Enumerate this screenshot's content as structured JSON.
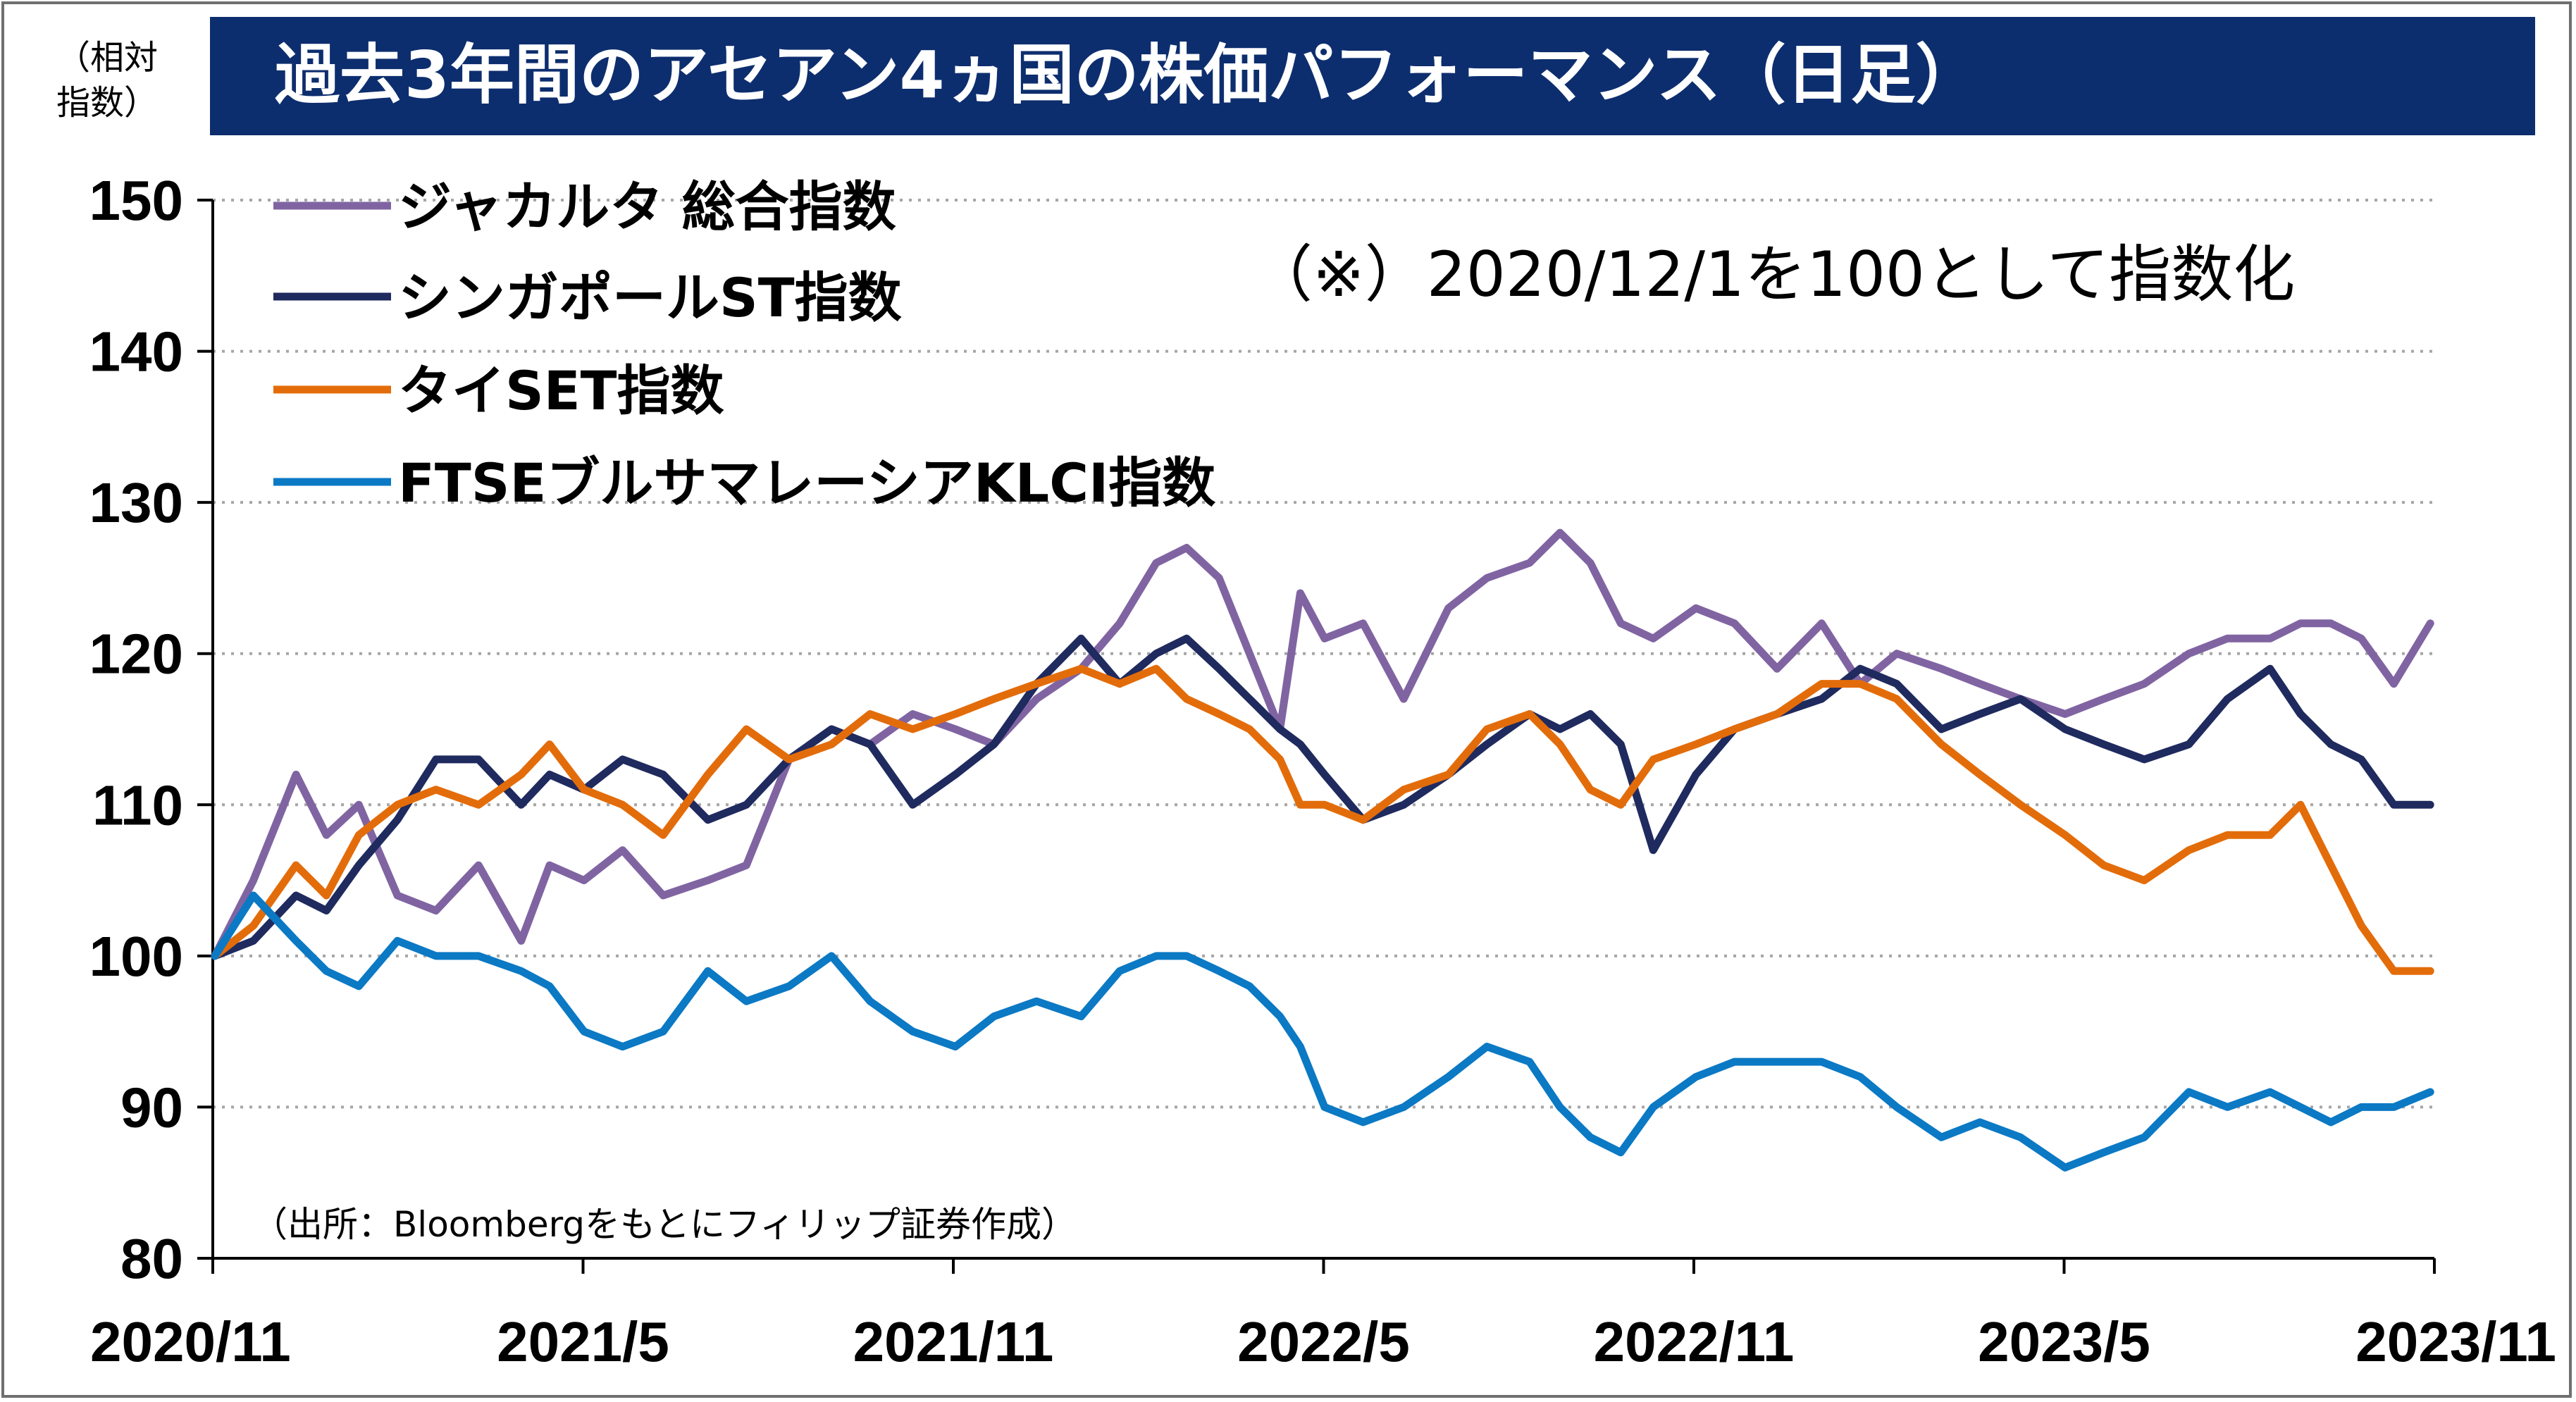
{
  "chart_data": {
    "type": "line",
    "title": "過去3年間のアセアン4ヵ国の株価パフォーマンス（日足）",
    "ylabel": "（相対指数）",
    "note": "（※）2020/12/1を100として指数化",
    "source": "（出所：Bloombergをもとにフィリップ証券作成）",
    "ylim": [
      80,
      150
    ],
    "yticks": [
      80,
      90,
      100,
      110,
      120,
      130,
      140,
      150
    ],
    "xlim": [
      "2020-11-30",
      "2023-11-30"
    ],
    "xticks": [
      "2020/11",
      "2021/5",
      "2021/11",
      "2022/5",
      "2022/11",
      "2023/5",
      "2023/11"
    ],
    "grid": true,
    "legend_position": "top-left",
    "series": [
      {
        "name": "ジャカルタ 総合指数",
        "color": "#8064a2",
        "x": [
          "2020-12-01",
          "2020-12-20",
          "2021-01-10",
          "2021-01-25",
          "2021-02-10",
          "2021-03-01",
          "2021-03-20",
          "2021-04-10",
          "2021-05-01",
          "2021-05-15",
          "2021-06-01",
          "2021-06-20",
          "2021-07-10",
          "2021-08-01",
          "2021-08-20",
          "2021-09-10",
          "2021-10-01",
          "2021-10-20",
          "2021-11-10",
          "2021-12-01",
          "2021-12-20",
          "2022-01-10",
          "2022-02-01",
          "2022-02-20",
          "2022-03-10",
          "2022-03-25",
          "2022-04-10",
          "2022-04-25",
          "2022-05-10",
          "2022-05-20",
          "2022-06-01",
          "2022-06-20",
          "2022-07-10",
          "2022-08-01",
          "2022-08-20",
          "2022-09-10",
          "2022-09-25",
          "2022-10-10",
          "2022-10-25",
          "2022-11-10",
          "2022-12-01",
          "2022-12-20",
          "2023-01-10",
          "2023-02-01",
          "2023-02-20",
          "2023-03-10",
          "2023-04-01",
          "2023-04-20",
          "2023-05-10",
          "2023-06-01",
          "2023-06-20",
          "2023-07-10",
          "2023-08-01",
          "2023-08-20",
          "2023-09-10",
          "2023-09-25",
          "2023-10-10",
          "2023-10-25",
          "2023-11-10",
          "2023-11-28"
        ],
        "values": [
          100,
          105,
          112,
          108,
          110,
          104,
          103,
          106,
          101,
          106,
          105,
          107,
          104,
          105,
          106,
          113,
          115,
          114,
          116,
          115,
          114,
          117,
          119,
          122,
          126,
          127,
          125,
          120,
          115,
          124,
          121,
          122,
          117,
          123,
          125,
          126,
          128,
          126,
          122,
          121,
          123,
          122,
          119,
          122,
          118,
          120,
          119,
          118,
          117,
          116,
          117,
          118,
          120,
          121,
          121,
          122,
          122,
          121,
          118,
          122
        ]
      },
      {
        "name": "シンガポールST指数",
        "color": "#1f2a5e",
        "x": [
          "2020-12-01",
          "2020-12-20",
          "2021-01-10",
          "2021-01-25",
          "2021-02-10",
          "2021-03-01",
          "2021-03-20",
          "2021-04-10",
          "2021-05-01",
          "2021-05-15",
          "2021-06-01",
          "2021-06-20",
          "2021-07-10",
          "2021-08-01",
          "2021-08-20",
          "2021-09-10",
          "2021-10-01",
          "2021-10-20",
          "2021-11-10",
          "2021-12-01",
          "2021-12-20",
          "2022-01-10",
          "2022-02-01",
          "2022-02-20",
          "2022-03-10",
          "2022-03-25",
          "2022-04-10",
          "2022-04-25",
          "2022-05-10",
          "2022-05-20",
          "2022-06-01",
          "2022-06-20",
          "2022-07-10",
          "2022-08-01",
          "2022-08-20",
          "2022-09-10",
          "2022-09-25",
          "2022-10-10",
          "2022-10-25",
          "2022-11-10",
          "2022-12-01",
          "2022-12-20",
          "2023-01-10",
          "2023-02-01",
          "2023-02-20",
          "2023-03-10",
          "2023-04-01",
          "2023-04-20",
          "2023-05-10",
          "2023-06-01",
          "2023-06-20",
          "2023-07-10",
          "2023-08-01",
          "2023-08-20",
          "2023-09-10",
          "2023-09-25",
          "2023-10-10",
          "2023-10-25",
          "2023-11-10",
          "2023-11-28"
        ],
        "values": [
          100,
          101,
          104,
          103,
          106,
          109,
          113,
          113,
          110,
          112,
          111,
          113,
          112,
          109,
          110,
          113,
          115,
          114,
          110,
          112,
          114,
          118,
          121,
          118,
          120,
          121,
          119,
          117,
          115,
          114,
          112,
          109,
          110,
          112,
          114,
          116,
          115,
          116,
          114,
          107,
          112,
          115,
          116,
          117,
          119,
          118,
          115,
          116,
          117,
          115,
          114,
          113,
          114,
          117,
          119,
          116,
          114,
          113,
          110,
          110
        ]
      },
      {
        "name": "タイSET指数",
        "color": "#e36c0a",
        "x": [
          "2020-12-01",
          "2020-12-20",
          "2021-01-10",
          "2021-01-25",
          "2021-02-10",
          "2021-03-01",
          "2021-03-20",
          "2021-04-10",
          "2021-05-01",
          "2021-05-15",
          "2021-06-01",
          "2021-06-20",
          "2021-07-10",
          "2021-08-01",
          "2021-08-20",
          "2021-09-10",
          "2021-10-01",
          "2021-10-20",
          "2021-11-10",
          "2021-12-01",
          "2021-12-20",
          "2022-01-10",
          "2022-02-01",
          "2022-02-20",
          "2022-03-10",
          "2022-03-25",
          "2022-04-10",
          "2022-04-25",
          "2022-05-10",
          "2022-05-20",
          "2022-06-01",
          "2022-06-20",
          "2022-07-10",
          "2022-08-01",
          "2022-08-20",
          "2022-09-10",
          "2022-09-25",
          "2022-10-10",
          "2022-10-25",
          "2022-11-10",
          "2022-12-01",
          "2022-12-20",
          "2023-01-10",
          "2023-02-01",
          "2023-02-20",
          "2023-03-10",
          "2023-04-01",
          "2023-04-20",
          "2023-05-10",
          "2023-06-01",
          "2023-06-20",
          "2023-07-10",
          "2023-08-01",
          "2023-08-20",
          "2023-09-10",
          "2023-09-25",
          "2023-10-10",
          "2023-10-25",
          "2023-11-10",
          "2023-11-28"
        ],
        "values": [
          100,
          102,
          106,
          104,
          108,
          110,
          111,
          110,
          112,
          114,
          111,
          110,
          108,
          112,
          115,
          113,
          114,
          116,
          115,
          116,
          117,
          118,
          119,
          118,
          119,
          117,
          116,
          115,
          113,
          110,
          110,
          109,
          111,
          112,
          115,
          116,
          114,
          111,
          110,
          113,
          114,
          115,
          116,
          118,
          118,
          117,
          114,
          112,
          110,
          108,
          106,
          105,
          107,
          108,
          108,
          110,
          106,
          102,
          99,
          99
        ]
      },
      {
        "name": "FTSEブルサマレーシアKLCI指数",
        "color": "#0b79c4",
        "x": [
          "2020-12-01",
          "2020-12-20",
          "2021-01-10",
          "2021-01-25",
          "2021-02-10",
          "2021-03-01",
          "2021-03-20",
          "2021-04-10",
          "2021-05-01",
          "2021-05-15",
          "2021-06-01",
          "2021-06-20",
          "2021-07-10",
          "2021-08-01",
          "2021-08-20",
          "2021-09-10",
          "2021-10-01",
          "2021-10-20",
          "2021-11-10",
          "2021-12-01",
          "2021-12-20",
          "2022-01-10",
          "2022-02-01",
          "2022-02-20",
          "2022-03-10",
          "2022-03-25",
          "2022-04-10",
          "2022-04-25",
          "2022-05-10",
          "2022-05-20",
          "2022-06-01",
          "2022-06-20",
          "2022-07-10",
          "2022-08-01",
          "2022-08-20",
          "2022-09-10",
          "2022-09-25",
          "2022-10-10",
          "2022-10-25",
          "2022-11-10",
          "2022-12-01",
          "2022-12-20",
          "2023-01-10",
          "2023-02-01",
          "2023-02-20",
          "2023-03-10",
          "2023-04-01",
          "2023-04-20",
          "2023-05-10",
          "2023-06-01",
          "2023-06-20",
          "2023-07-10",
          "2023-08-01",
          "2023-08-20",
          "2023-09-10",
          "2023-09-25",
          "2023-10-10",
          "2023-10-25",
          "2023-11-10",
          "2023-11-28"
        ],
        "values": [
          100,
          104,
          101,
          99,
          98,
          101,
          100,
          100,
          99,
          98,
          95,
          94,
          95,
          99,
          97,
          98,
          100,
          97,
          95,
          94,
          96,
          97,
          96,
          99,
          100,
          100,
          99,
          98,
          96,
          94,
          90,
          89,
          90,
          92,
          94,
          93,
          90,
          88,
          87,
          90,
          92,
          93,
          93,
          93,
          92,
          90,
          88,
          89,
          88,
          86,
          87,
          88,
          91,
          90,
          91,
          90,
          89,
          90,
          90,
          91
        ]
      }
    ]
  }
}
